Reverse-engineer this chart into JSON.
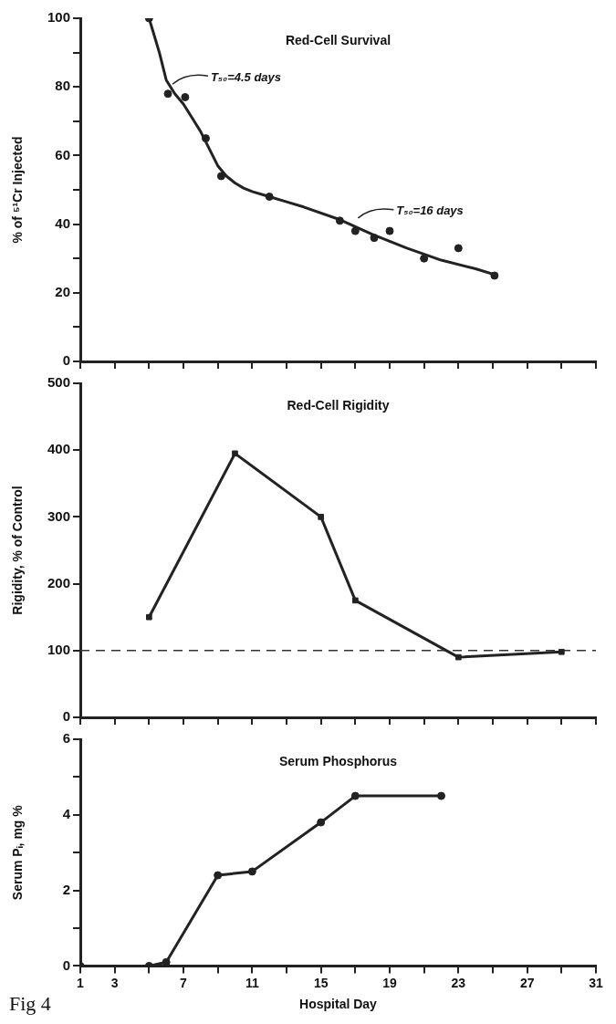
{
  "chart_data": [
    {
      "type": "line",
      "title": "Red-Cell Survival",
      "ylabel": "% of ⁵¹Cr Injected",
      "xlim": [
        1,
        31
      ],
      "xticks": [
        1,
        3,
        {
          "value": 5,
          "label": null
        },
        7,
        {
          "value": 9,
          "label": null
        },
        11,
        {
          "value": 13,
          "label": null
        },
        15,
        {
          "value": 17,
          "label": null
        },
        19,
        {
          "value": 21,
          "label": null
        },
        23,
        {
          "value": 25,
          "label": null
        },
        27,
        {
          "value": 29,
          "label": null
        },
        31
      ],
      "ylim": [
        0,
        100
      ],
      "yticks": [
        0,
        {
          "value": 10,
          "label": null
        },
        20,
        {
          "value": 30,
          "label": null
        },
        40,
        {
          "value": 50,
          "label": null
        },
        60,
        {
          "value": 70,
          "label": null
        },
        80,
        {
          "value": 90,
          "label": null
        },
        100
      ],
      "tick_labels": "y",
      "grid": false,
      "series": [
        {
          "type": "scatter",
          "color": "#222222",
          "marker": "circle",
          "x": [
            5,
            6.1,
            7.1,
            8.3,
            9.2,
            12,
            16.1,
            17,
            18.1,
            19,
            21,
            23,
            25.1
          ],
          "values": [
            100,
            78,
            77,
            65,
            54,
            48,
            41,
            38,
            36,
            38,
            30,
            33,
            25
          ]
        },
        {
          "type": "line",
          "color": "#222222",
          "marker": "none",
          "x": [
            5,
            5.3,
            5.6,
            6,
            6.5,
            7,
            7.5,
            8,
            8.5,
            9,
            9.5,
            10,
            10.5,
            11,
            12,
            13,
            14,
            16,
            18,
            20,
            22,
            24,
            25.1
          ],
          "values": [
            100,
            95,
            90,
            82,
            78,
            75,
            71,
            67,
            62,
            57,
            54,
            52,
            50.5,
            49.5,
            48,
            46.5,
            45,
            41.5,
            37,
            33,
            29.5,
            27,
            25.3
          ]
        }
      ],
      "annotations": [
        {
          "text": "T₅₀=4.5 days",
          "x": 6.2,
          "y": 80
        },
        {
          "text": "T₅₀=16 days",
          "x": 17,
          "y": 41
        }
      ]
    },
    {
      "type": "line",
      "title": "Red-Cell Rigidity",
      "ylabel": "Rigidity, % of Control",
      "xlim": [
        1,
        31
      ],
      "xticks": [
        1,
        3,
        {
          "value": 5,
          "label": null
        },
        7,
        {
          "value": 9,
          "label": null
        },
        11,
        {
          "value": 13,
          "label": null
        },
        15,
        {
          "value": 17,
          "label": null
        },
        19,
        {
          "value": 21,
          "label": null
        },
        23,
        {
          "value": 25,
          "label": null
        },
        27,
        {
          "value": 29,
          "label": null
        },
        31
      ],
      "ylim": [
        0,
        500
      ],
      "yticks": [
        0,
        100,
        200,
        300,
        400,
        500
      ],
      "tick_labels": "y",
      "grid": false,
      "marker": "square",
      "series": [
        {
          "color": "#222222",
          "x": [
            5,
            10,
            15,
            17,
            23,
            29
          ],
          "values": [
            150,
            395,
            300,
            175,
            90,
            98
          ]
        }
      ],
      "ref_lines": [
        {
          "axis": "y",
          "value": 100,
          "line_style": "dashed",
          "color": "#333333"
        }
      ]
    },
    {
      "type": "line",
      "title": "Serum Phosphorus",
      "ylabel": "Serum Pᵢ, mg %",
      "xlabel": "Hospital Day",
      "xlim": [
        1,
        31
      ],
      "xticks": [
        1,
        3,
        {
          "value": 5,
          "label": null
        },
        7,
        {
          "value": 9,
          "label": null
        },
        11,
        {
          "value": 13,
          "label": null
        },
        15,
        {
          "value": 17,
          "label": null
        },
        19,
        {
          "value": 21,
          "label": null
        },
        23,
        {
          "value": 25,
          "label": null
        },
        27,
        {
          "value": 29,
          "label": null
        },
        31
      ],
      "ylim": [
        0,
        6
      ],
      "yticks": [
        0,
        {
          "value": 1,
          "label": null
        },
        2,
        {
          "value": 3,
          "label": null
        },
        4,
        {
          "value": 5,
          "label": null
        },
        6
      ],
      "grid": false,
      "marker": "circle",
      "series": [
        {
          "color": "#222222",
          "x": [
            1,
            5,
            6,
            9,
            11,
            15,
            17,
            22
          ],
          "values": [
            0,
            0,
            0.1,
            2.4,
            2.5,
            3.8,
            4.5,
            4.5
          ]
        }
      ],
      "annotations": [
        "Fig 4"
      ]
    }
  ]
}
